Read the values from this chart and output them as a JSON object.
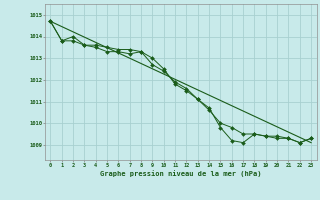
{
  "title": "Graphe pression niveau de la mer (hPa)",
  "bg_color": "#c8eaea",
  "grid_color": "#a8d0d0",
  "line_color": "#1a5c1a",
  "marker_color": "#1a5c1a",
  "x_ticks": [
    0,
    1,
    2,
    3,
    4,
    5,
    6,
    7,
    8,
    9,
    10,
    11,
    12,
    13,
    14,
    15,
    16,
    17,
    18,
    19,
    20,
    21,
    22,
    23
  ],
  "xlim": [
    -0.5,
    23.5
  ],
  "ylim": [
    1008.3,
    1015.5
  ],
  "y_ticks": [
    1009,
    1010,
    1011,
    1012,
    1013,
    1014,
    1015
  ],
  "series1": [
    1014.7,
    1013.8,
    1014.0,
    1013.6,
    1013.5,
    1013.3,
    1013.3,
    1013.2,
    1013.3,
    1012.7,
    1012.4,
    1011.9,
    1011.6,
    1011.1,
    1010.7,
    1009.8,
    1009.2,
    1009.1,
    1009.5,
    1009.4,
    1009.4,
    1009.3,
    1009.1,
    1009.3
  ],
  "series2": [
    1014.7,
    1013.8,
    1013.8,
    1013.6,
    1013.6,
    1013.5,
    1013.4,
    1013.4,
    1013.3,
    1013.0,
    1012.5,
    1011.8,
    1011.5,
    1011.1,
    1010.6,
    1010.0,
    1009.8,
    1009.5,
    1009.5,
    1009.4,
    1009.3,
    1009.3,
    1009.1,
    1009.3
  ],
  "series3_x": [
    0,
    23
  ],
  "series3_y": [
    1014.7,
    1009.1
  ]
}
